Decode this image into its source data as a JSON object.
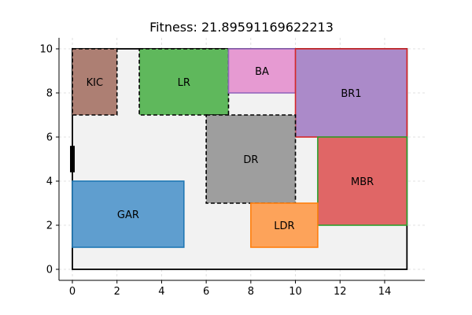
{
  "chart_data": {
    "type": "floorplan",
    "title": "Fitness: 21.89591169622213",
    "xlim": [
      -0.6,
      15.8
    ],
    "ylim": [
      -0.5,
      10.5
    ],
    "xticks": [
      0,
      2,
      4,
      6,
      8,
      10,
      12,
      14
    ],
    "yticks": [
      0,
      2,
      4,
      6,
      8,
      10
    ],
    "grid": true,
    "boundary": {
      "x": 0,
      "y": 0,
      "width": 15,
      "height": 10,
      "fill": "#f2f2f2",
      "stroke": "#000000"
    },
    "door": {
      "x": 0,
      "y_start": 4.4,
      "y_end": 5.6,
      "color": "#000000"
    },
    "rooms": [
      {
        "name": "KIC",
        "x": 0,
        "y": 7,
        "width": 2,
        "height": 3,
        "fill": "#ad7f73",
        "stroke": "#000000",
        "dashed": true
      },
      {
        "name": "LR",
        "x": 3,
        "y": 7,
        "width": 4,
        "height": 3,
        "fill": "#5fb85c",
        "stroke": "#000000",
        "dashed": true
      },
      {
        "name": "BA",
        "x": 7,
        "y": 8,
        "width": 3,
        "height": 2,
        "fill": "#e69ad2",
        "stroke": "#9467bd",
        "dashed": false
      },
      {
        "name": "BR1",
        "x": 10,
        "y": 6,
        "width": 5,
        "height": 4,
        "fill": "#ab8ac9",
        "stroke": "#d62728",
        "dashed": false
      },
      {
        "name": "DR",
        "x": 6,
        "y": 3,
        "width": 4,
        "height": 4,
        "fill": "#9e9e9e",
        "stroke": "#000000",
        "dashed": true
      },
      {
        "name": "MBR",
        "x": 11,
        "y": 2,
        "width": 4,
        "height": 4,
        "fill": "#e06666",
        "stroke": "#2ca02c",
        "dashed": false
      },
      {
        "name": "GAR",
        "x": 0,
        "y": 1,
        "width": 5,
        "height": 3,
        "fill": "#5f9ecf",
        "stroke": "#1f77b4",
        "dashed": false
      },
      {
        "name": "LDR",
        "x": 8,
        "y": 1,
        "width": 3,
        "height": 2,
        "fill": "#fda35a",
        "stroke": "#ff7f0e",
        "dashed": false
      }
    ]
  }
}
